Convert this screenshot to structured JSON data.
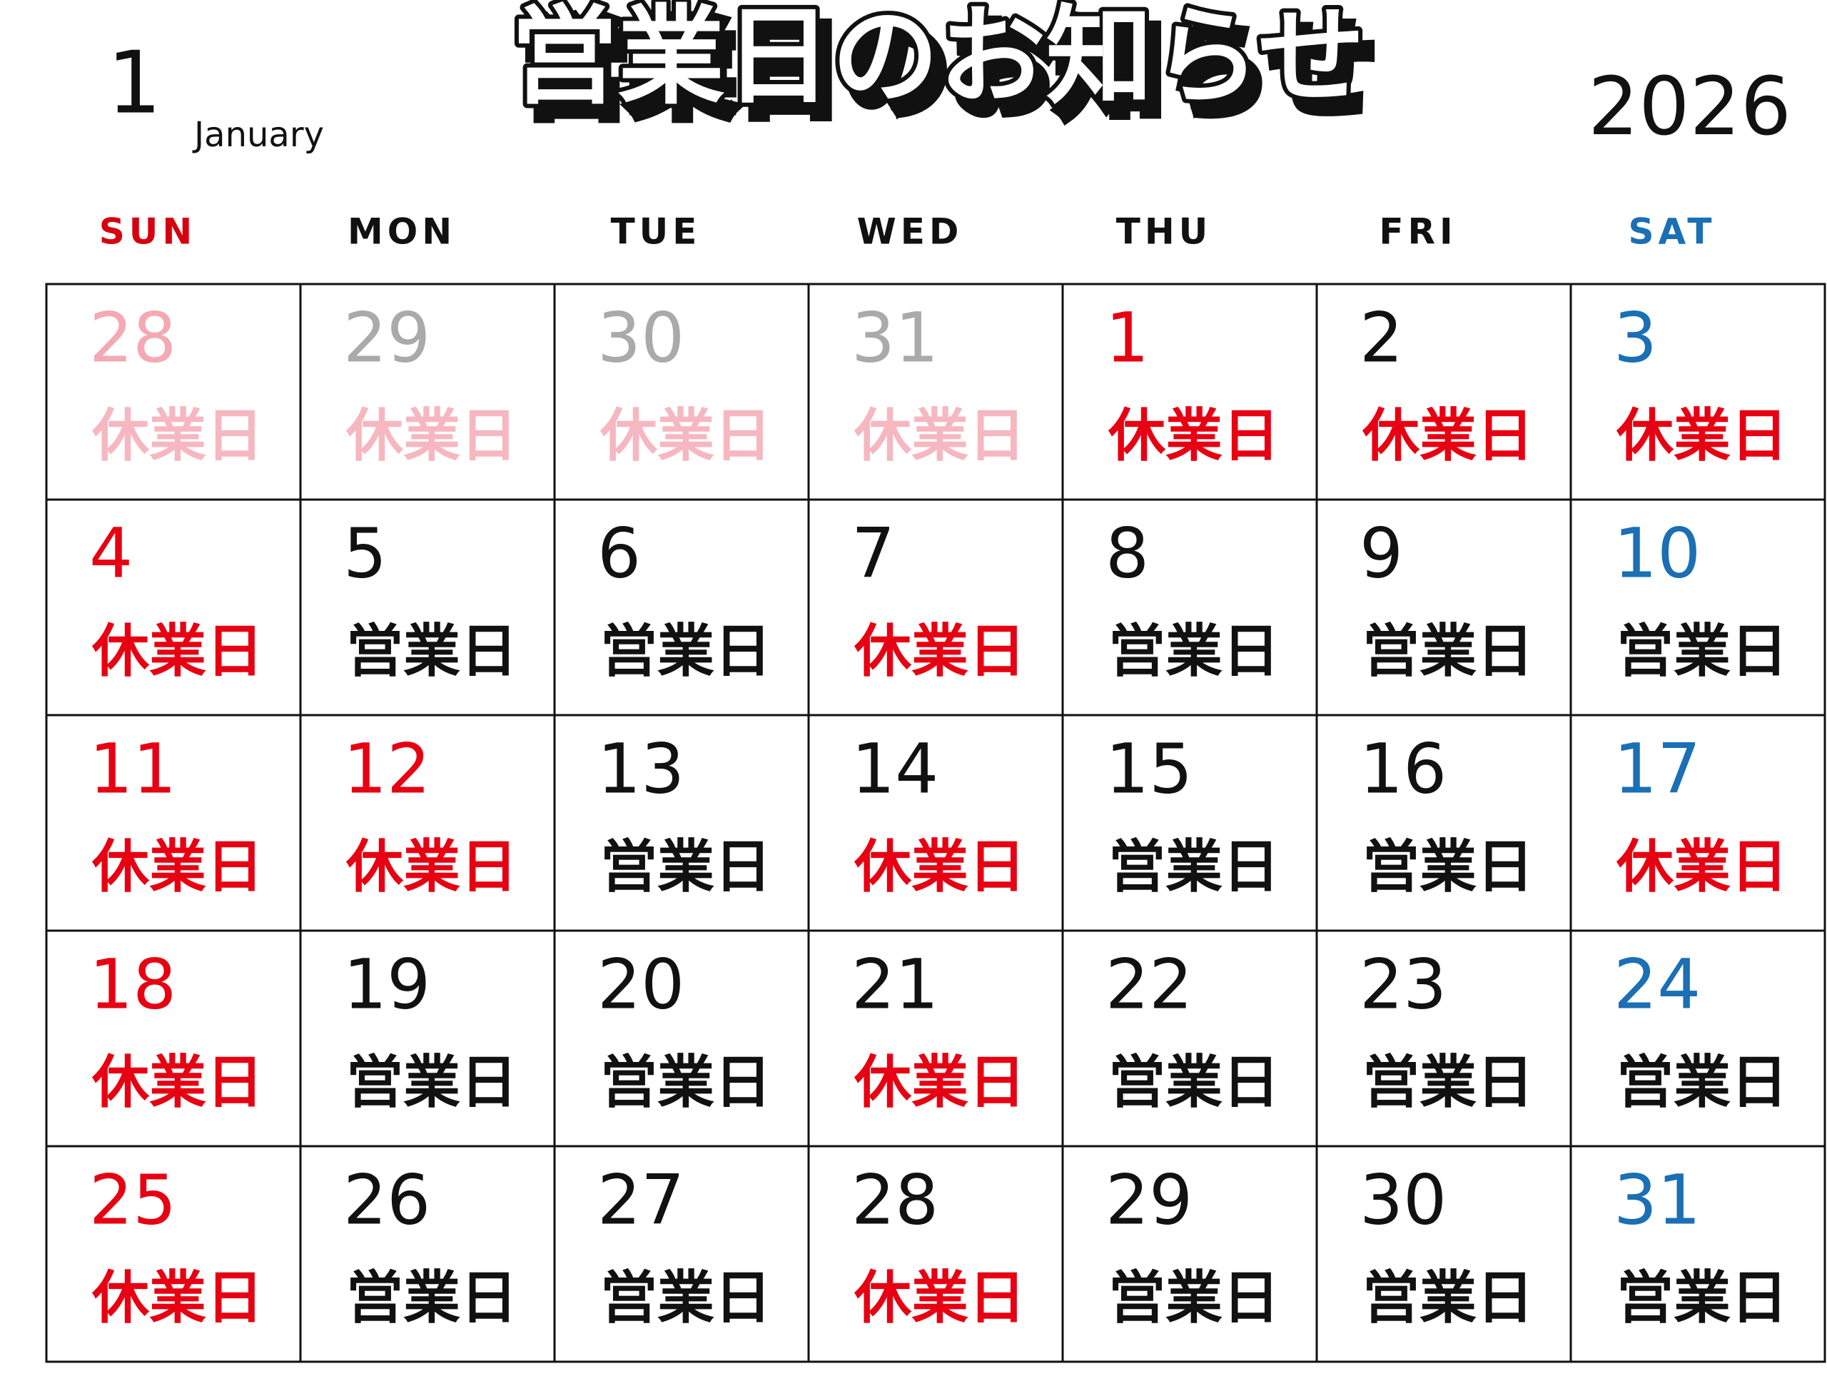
{
  "header": {
    "month": "1",
    "month_name": "January",
    "title": "営業日のお知らせ",
    "year": "2026"
  },
  "weekdays": [
    {
      "label": "SUN",
      "color": "#d7000f"
    },
    {
      "label": "MON",
      "color": "#111111"
    },
    {
      "label": "TUE",
      "color": "#111111"
    },
    {
      "label": "WED",
      "color": "#111111"
    },
    {
      "label": "THU",
      "color": "#111111"
    },
    {
      "label": "FRI",
      "color": "#111111"
    },
    {
      "label": "SAT",
      "color": "#1a6fb5"
    }
  ],
  "weeks": [
    [
      {
        "day": "28",
        "status": "休業日",
        "day_color": "#f4a9b3",
        "status_color": "#f6b7c0"
      },
      {
        "day": "29",
        "status": "休業日",
        "day_color": "#aaaaaa",
        "status_color": "#f6b7c0"
      },
      {
        "day": "30",
        "status": "休業日",
        "day_color": "#aaaaaa",
        "status_color": "#f6b7c0"
      },
      {
        "day": "31",
        "status": "休業日",
        "day_color": "#aaaaaa",
        "status_color": "#f6b7c0"
      },
      {
        "day": "1",
        "status": "休業日",
        "day_color": "#e60012",
        "status_color": "#e60012"
      },
      {
        "day": "2",
        "status": "休業日",
        "day_color": "#111111",
        "status_color": "#e60012"
      },
      {
        "day": "3",
        "status": "休業日",
        "day_color": "#1a6fb5",
        "status_color": "#e60012"
      }
    ],
    [
      {
        "day": "4",
        "status": "休業日",
        "day_color": "#e60012",
        "status_color": "#e60012"
      },
      {
        "day": "5",
        "status": "営業日",
        "day_color": "#111111",
        "status_color": "#111111"
      },
      {
        "day": "6",
        "status": "営業日",
        "day_color": "#111111",
        "status_color": "#111111"
      },
      {
        "day": "7",
        "status": "休業日",
        "day_color": "#111111",
        "status_color": "#e60012"
      },
      {
        "day": "8",
        "status": "営業日",
        "day_color": "#111111",
        "status_color": "#111111"
      },
      {
        "day": "9",
        "status": "営業日",
        "day_color": "#111111",
        "status_color": "#111111"
      },
      {
        "day": "10",
        "status": "営業日",
        "day_color": "#1a6fb5",
        "status_color": "#111111"
      }
    ],
    [
      {
        "day": "11",
        "status": "休業日",
        "day_color": "#e60012",
        "status_color": "#e60012"
      },
      {
        "day": "12",
        "status": "休業日",
        "day_color": "#e60012",
        "status_color": "#e60012"
      },
      {
        "day": "13",
        "status": "営業日",
        "day_color": "#111111",
        "status_color": "#111111"
      },
      {
        "day": "14",
        "status": "休業日",
        "day_color": "#111111",
        "status_color": "#e60012"
      },
      {
        "day": "15",
        "status": "営業日",
        "day_color": "#111111",
        "status_color": "#111111"
      },
      {
        "day": "16",
        "status": "営業日",
        "day_color": "#111111",
        "status_color": "#111111"
      },
      {
        "day": "17",
        "status": "休業日",
        "day_color": "#1a6fb5",
        "status_color": "#e60012"
      }
    ],
    [
      {
        "day": "18",
        "status": "休業日",
        "day_color": "#e60012",
        "status_color": "#e60012"
      },
      {
        "day": "19",
        "status": "営業日",
        "day_color": "#111111",
        "status_color": "#111111"
      },
      {
        "day": "20",
        "status": "営業日",
        "day_color": "#111111",
        "status_color": "#111111"
      },
      {
        "day": "21",
        "status": "休業日",
        "day_color": "#111111",
        "status_color": "#e60012"
      },
      {
        "day": "22",
        "status": "営業日",
        "day_color": "#111111",
        "status_color": "#111111"
      },
      {
        "day": "23",
        "status": "営業日",
        "day_color": "#111111",
        "status_color": "#111111"
      },
      {
        "day": "24",
        "status": "営業日",
        "day_color": "#1a6fb5",
        "status_color": "#111111"
      }
    ],
    [
      {
        "day": "25",
        "status": "休業日",
        "day_color": "#e60012",
        "status_color": "#e60012"
      },
      {
        "day": "26",
        "status": "営業日",
        "day_color": "#111111",
        "status_color": "#111111"
      },
      {
        "day": "27",
        "status": "営業日",
        "day_color": "#111111",
        "status_color": "#111111"
      },
      {
        "day": "28",
        "status": "休業日",
        "day_color": "#111111",
        "status_color": "#e60012"
      },
      {
        "day": "29",
        "status": "営業日",
        "day_color": "#111111",
        "status_color": "#111111"
      },
      {
        "day": "30",
        "status": "営業日",
        "day_color": "#111111",
        "status_color": "#111111"
      },
      {
        "day": "31",
        "status": "営業日",
        "day_color": "#1a6fb5",
        "status_color": "#111111"
      }
    ]
  ]
}
